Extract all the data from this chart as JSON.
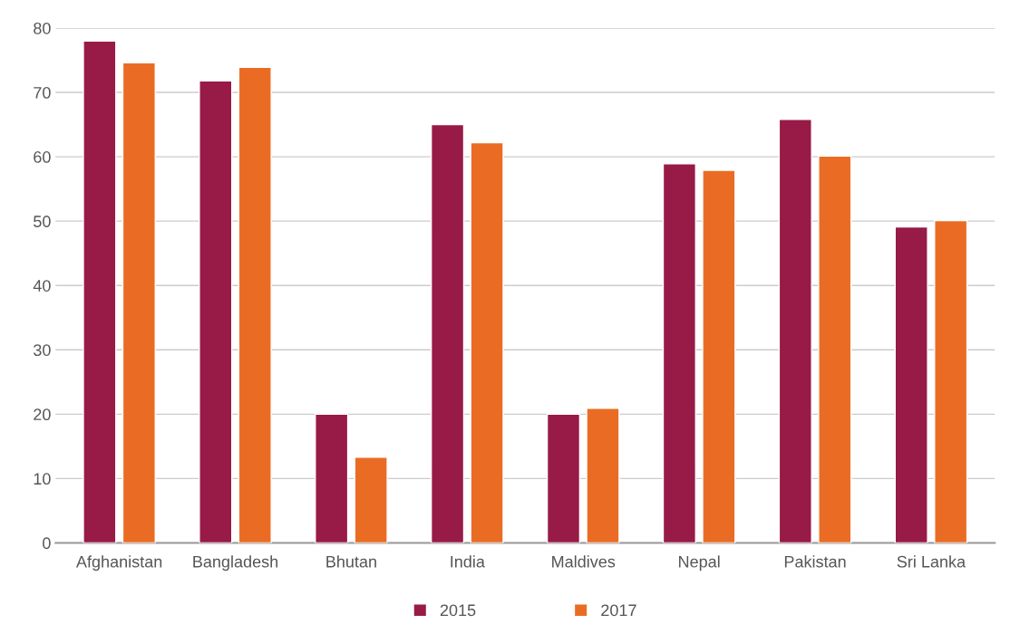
{
  "chart_data": {
    "type": "bar",
    "categories": [
      "Afghanistan",
      "Bangladesh",
      "Bhutan",
      "India",
      "Maldives",
      "Nepal",
      "Pakistan",
      "Sri Lanka"
    ],
    "series": [
      {
        "name": "2015",
        "color": "#981a47",
        "values": [
          78,
          71.8,
          20,
          65,
          20,
          58.9,
          65.8,
          49.1
        ]
      },
      {
        "name": "2017",
        "color": "#ea6c24",
        "values": [
          74.6,
          73.9,
          13.3,
          62.2,
          20.9,
          57.9,
          60.1,
          50.1
        ]
      }
    ],
    "ylim": [
      0,
      80
    ],
    "yticks": [
      0,
      10,
      20,
      30,
      40,
      50,
      60,
      70,
      80
    ],
    "grid": "y",
    "legend": "bottom"
  }
}
